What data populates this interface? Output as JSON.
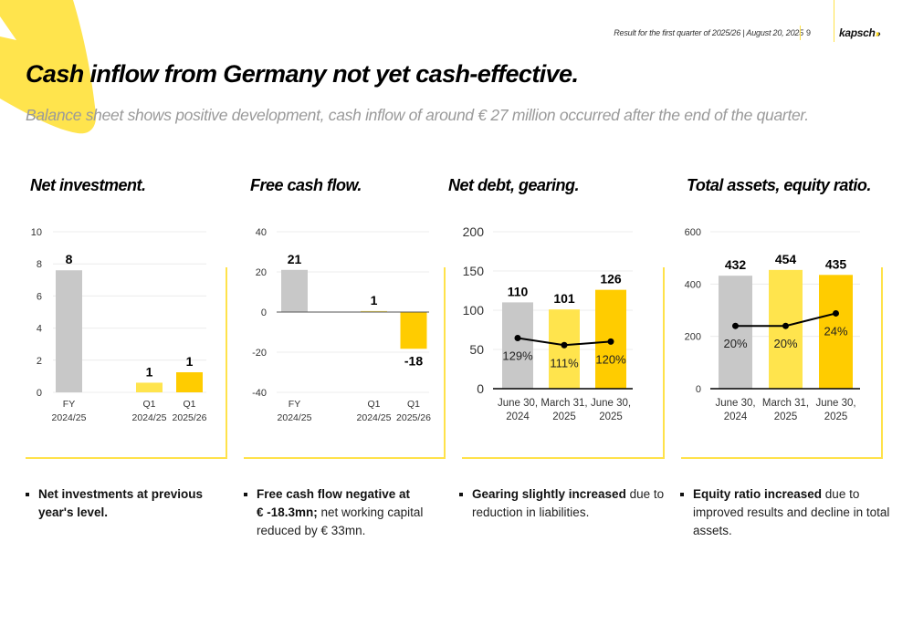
{
  "header": {
    "meta": "Result for the first quarter of 2025/26 | August 20, 2025",
    "page_number": "9",
    "logo_text": "kapsch",
    "logo_arrows": ">>>"
  },
  "title": "Cash inflow from Germany not yet cash-effective.",
  "subtitle": "Balance sheet shows positive development, cash inflow of around € 27 million occurred after the end of the quarter.",
  "colors": {
    "gray": "#c8c8c8",
    "light_yellow": "#ffe44d",
    "yellow": "#ffcc00",
    "accent": "#ffe24a"
  },
  "sections": [
    {
      "title": "Net investment.",
      "bullet": {
        "bold": "Net investments at previous year's level.",
        "rest": "",
        "lines": [
          "Net investments at previous",
          "year's level."
        ]
      }
    },
    {
      "title": "Free cash flow.",
      "bullet": {
        "bold_lines": [
          "Free cash flow negative at",
          "€ -18.3mn;"
        ],
        "rest_lines": [
          " net working capital",
          "reduced by € 33mn."
        ]
      }
    },
    {
      "title": "Net debt, gearing.",
      "bullet": {
        "bold": "Gearing slightly increased",
        "line1_rest": " due to",
        "line2": "reduction in liabilities."
      }
    },
    {
      "title": "Total assets, equity ratio.",
      "bullet": {
        "bold": "Equity ratio increased",
        "line1_rest": " due to",
        "line2": "improved results and decline in total",
        "line3": "assets."
      }
    }
  ],
  "chart_data": [
    {
      "type": "bar",
      "title": "Net investment.",
      "categories": [
        [
          "FY",
          "2024/25"
        ],
        [
          "Q1",
          "2024/25"
        ],
        [
          "Q1",
          "2025/26"
        ]
      ],
      "category_slots": [
        0,
        2,
        3
      ],
      "values": [
        7.6,
        0.6,
        1.25
      ],
      "data_labels": [
        "8",
        "1",
        "1"
      ],
      "bar_colors": [
        "#c8c8c8",
        "#ffe44d",
        "#ffcc00"
      ],
      "ylim": [
        0,
        10
      ],
      "yticks": [
        0,
        2,
        4,
        6,
        8,
        10
      ],
      "ytick_labels": [
        "0",
        "2",
        "4",
        "6",
        "8",
        "10"
      ],
      "grid": true,
      "xlabel": "",
      "ylabel": ""
    },
    {
      "type": "bar",
      "title": "Free cash flow.",
      "categories": [
        [
          "FY",
          "2024/25"
        ],
        [
          "Q1",
          "2024/25"
        ],
        [
          "Q1",
          "2025/26"
        ]
      ],
      "category_slots": [
        0,
        2,
        3
      ],
      "values": [
        21,
        0.5,
        -18.3
      ],
      "data_labels": [
        "21",
        "1",
        "-18"
      ],
      "bar_colors": [
        "#c8c8c8",
        "#ffe44d",
        "#ffcc00"
      ],
      "ylim": [
        -40,
        40
      ],
      "yticks": [
        -40,
        -20,
        0,
        20,
        40
      ],
      "ytick_labels": [
        "-40",
        "-20",
        "0",
        "20",
        "40"
      ],
      "grid": true,
      "xlabel": "",
      "ylabel": ""
    },
    {
      "type": "bar",
      "title": "Net debt, gearing.",
      "categories": [
        [
          "June 30,",
          "2024"
        ],
        [
          "March 31,",
          "2025"
        ],
        [
          "June 30,",
          "2025"
        ]
      ],
      "category_slots": [
        0,
        1,
        2
      ],
      "series": [
        {
          "name": "Net debt",
          "type": "bar",
          "values": [
            110,
            101,
            126
          ],
          "data_labels": [
            "110",
            "101",
            "126"
          ]
        },
        {
          "name": "Gearing",
          "type": "line",
          "values": [
            129,
            111,
            120
          ],
          "data_labels": [
            "129%",
            "111%",
            "120%"
          ],
          "unit": "%",
          "secondary_ylim": [
            0,
            400
          ]
        }
      ],
      "bar_colors": [
        "#c8c8c8",
        "#ffe44d",
        "#ffcc00"
      ],
      "ylim": [
        0,
        200
      ],
      "yticks": [
        0,
        50,
        100,
        150,
        200
      ],
      "ytick_labels": [
        "0",
        "50",
        "100",
        "150",
        "200"
      ],
      "grid": true,
      "xlabel": "",
      "ylabel": ""
    },
    {
      "type": "bar",
      "title": "Total assets, equity ratio.",
      "categories": [
        [
          "June 30,",
          "2024"
        ],
        [
          "March 31,",
          "2025"
        ],
        [
          "June 30,",
          "2025"
        ]
      ],
      "category_slots": [
        0,
        1,
        2
      ],
      "series": [
        {
          "name": "Total assets",
          "type": "bar",
          "values": [
            432,
            454,
            435
          ],
          "data_labels": [
            "432",
            "454",
            "435"
          ]
        },
        {
          "name": "Equity ratio",
          "type": "line",
          "values": [
            20,
            20,
            24
          ],
          "data_labels": [
            "20%",
            "20%",
            "24%"
          ],
          "unit": "%",
          "secondary_ylim": [
            0,
            50
          ]
        }
      ],
      "bar_colors": [
        "#c8c8c8",
        "#ffe44d",
        "#ffcc00"
      ],
      "ylim": [
        0,
        600
      ],
      "yticks": [
        0,
        200,
        400,
        600
      ],
      "ytick_labels": [
        "0",
        "200",
        "400",
        "600"
      ],
      "grid": true,
      "xlabel": "",
      "ylabel": ""
    }
  ]
}
